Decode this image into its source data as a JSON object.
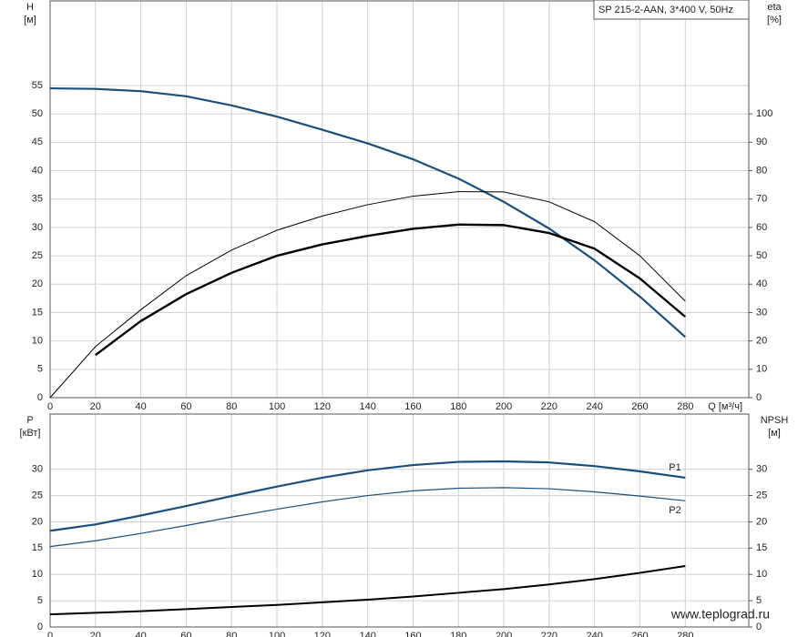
{
  "chart_data": [
    {
      "type": "line",
      "title": "SP 215-2-AAN, 3*400 V, 50Hz",
      "y_label": "H",
      "y_unit": "[м]",
      "y2_label": "eta",
      "y2_unit": "[%]",
      "x_label": "Q [м³/ч]",
      "x": [
        0,
        20,
        40,
        60,
        80,
        100,
        120,
        140,
        160,
        180,
        200,
        220,
        240,
        260,
        280
      ],
      "xlim": [
        0,
        308
      ],
      "xticks": [
        0,
        20,
        40,
        60,
        80,
        100,
        120,
        140,
        160,
        180,
        200,
        220,
        240,
        260,
        280
      ],
      "ylim": [
        0,
        69.9
      ],
      "yticks": [
        0,
        5,
        10,
        15,
        20,
        25,
        30,
        35,
        40,
        45,
        50,
        55
      ],
      "y2lim": [
        0,
        139.8
      ],
      "y2ticks": [
        0,
        10,
        20,
        30,
        40,
        50,
        60,
        70,
        80,
        90,
        100
      ],
      "grid": true,
      "series": [
        {
          "color": "#1b4f7b",
          "line_width": 2.2,
          "axis": "y",
          "values": [
            54.5,
            54.4,
            54,
            53.1,
            51.5,
            49.5,
            47.2,
            44.8,
            42.0,
            38.6,
            34.5,
            29.8,
            24.2,
            17.8,
            10.7
          ]
        },
        {
          "color": "#000000",
          "line_width": 1,
          "axis": "y2",
          "values": [
            0,
            18,
            31,
            43,
            52,
            59,
            64,
            68,
            71,
            72.6,
            72.5,
            69,
            62,
            50,
            34
          ]
        },
        {
          "color": "#000000",
          "line_width": 2.4,
          "axis": "y2",
          "values": [
            null,
            15,
            27,
            36.5,
            44,
            50,
            54,
            57,
            59.5,
            61,
            60.8,
            58,
            52.5,
            42,
            28.5
          ]
        }
      ]
    },
    {
      "type": "line",
      "y_label": "P",
      "y_unit": "[кВт]",
      "y2_label": "NPSH",
      "y2_unit": "[м]",
      "x": [
        0,
        20,
        40,
        60,
        80,
        100,
        120,
        140,
        160,
        180,
        200,
        220,
        240,
        260,
        280
      ],
      "xlim": [
        0,
        308
      ],
      "xticks": [
        0,
        20,
        40,
        60,
        80,
        100,
        120,
        140,
        160,
        180,
        200,
        220,
        240,
        260,
        280
      ],
      "ylim": [
        0,
        40.5
      ],
      "yticks": [
        0,
        5,
        10,
        15,
        20,
        25,
        30
      ],
      "y2lim": [
        0,
        40.5
      ],
      "y2ticks": [
        0,
        5,
        10,
        15,
        20,
        25,
        30
      ],
      "grid": true,
      "series": [
        {
          "name": "P1",
          "color": "#1b4f7b",
          "line_width": 2.2,
          "axis": "y",
          "values": [
            18.3,
            19.5,
            21.2,
            23,
            24.9,
            26.7,
            28.4,
            29.8,
            30.8,
            31.4,
            31.5,
            31.3,
            30.6,
            29.6,
            28.4
          ]
        },
        {
          "name": "P2",
          "color": "#1b4f7b",
          "line_width": 1.2,
          "axis": "y",
          "values": [
            15.3,
            16.4,
            17.8,
            19.3,
            20.9,
            22.4,
            23.8,
            25,
            25.9,
            26.4,
            26.5,
            26.3,
            25.7,
            24.9,
            24
          ]
        },
        {
          "color": "#000000",
          "line_width": 2,
          "axis": "y2",
          "values": [
            2.4,
            2.7,
            3.0,
            3.4,
            3.8,
            4.2,
            4.7,
            5.2,
            5.8,
            6.5,
            7.2,
            8.1,
            9.1,
            10.3,
            11.6
          ]
        }
      ]
    }
  ],
  "watermark": "www.teplograd.ru"
}
